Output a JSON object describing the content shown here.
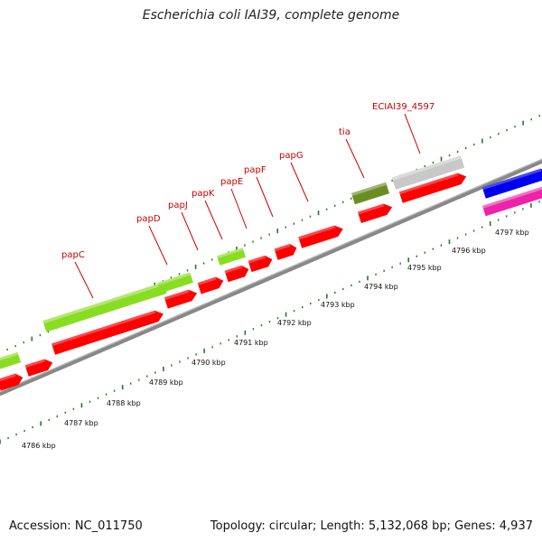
{
  "header": {
    "title": "Escherichia coli IAI39, complete genome"
  },
  "footer": {
    "accession": "Accession: NC_011750",
    "stats": "Topology: circular; Length: 5,132,068 bp; Genes: 4,937"
  },
  "colors": {
    "label": "#cc0000",
    "cds": "#ff0000",
    "backbone": "#888888",
    "tick": "#1f7a1f",
    "lime": "#88dd22",
    "olive": "#6b8e23",
    "gray": "#c8c8c8",
    "blue": "#0000ee",
    "magenta": "#ee22aa"
  },
  "scale": {
    "unit": "kbp",
    "labels": [
      "4786 kbp",
      "4787 kbp",
      "4788 kbp",
      "4789 kbp",
      "4790 kbp",
      "4791 kbp",
      "4792 kbp",
      "4793 kbp",
      "4794 kbp",
      "4795 kbp",
      "4796 kbp",
      "4797 kbp"
    ]
  },
  "genes": [
    {
      "name": "papC"
    },
    {
      "name": "papD"
    },
    {
      "name": "papJ"
    },
    {
      "name": "papK"
    },
    {
      "name": "papE"
    },
    {
      "name": "papF"
    },
    {
      "name": "papG"
    },
    {
      "name": "tia"
    },
    {
      "name": "ECIAI39_4597"
    }
  ]
}
